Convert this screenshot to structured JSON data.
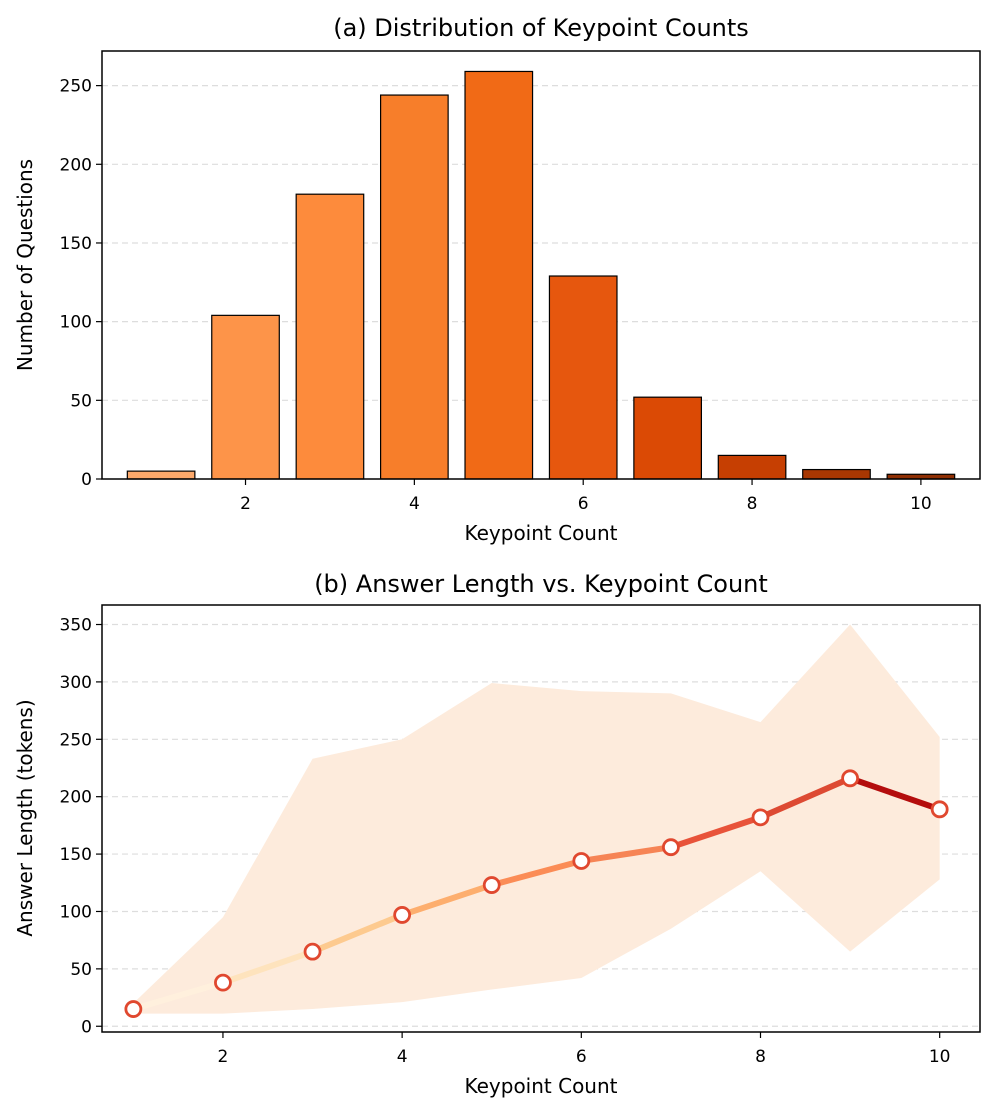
{
  "chart_data": [
    {
      "type": "bar",
      "title": "(a) Distribution of Keypoint Counts",
      "xlabel": "Keypoint Count",
      "ylabel": "Number of Questions",
      "categories": [
        1,
        2,
        3,
        4,
        5,
        6,
        7,
        8,
        9,
        10
      ],
      "values": [
        5,
        104,
        181,
        244,
        259,
        129,
        52,
        15,
        6,
        3
      ],
      "colors": [
        "#fda96b",
        "#fd9449",
        "#fd8b3c",
        "#f77e2a",
        "#f16a16",
        "#e6570e",
        "#db4a05",
        "#c63f02",
        "#a83702",
        "#8f2f04"
      ],
      "xticks": [
        2,
        4,
        6,
        8,
        10
      ],
      "yticks": [
        0,
        50,
        100,
        150,
        200,
        250
      ],
      "xlim": [
        0.3,
        10.7
      ],
      "ylim": [
        0,
        272
      ],
      "grid": "y-dashed"
    },
    {
      "type": "line",
      "title": "(b) Answer Length vs. Keypoint Count",
      "xlabel": "Keypoint Count",
      "ylabel": "Answer Length (tokens)",
      "x": [
        1,
        2,
        3,
        4,
        5,
        6,
        7,
        8,
        9,
        10
      ],
      "mean": [
        15,
        38,
        65,
        97,
        123,
        144,
        156,
        182,
        216,
        189
      ],
      "band_upper": [
        20,
        95,
        233,
        250,
        299,
        292,
        290,
        265,
        350,
        252
      ],
      "band_lower": [
        11,
        11,
        15,
        21,
        32,
        42,
        85,
        135,
        65,
        128
      ],
      "segment_colors": [
        "#fff0dd",
        "#fee3bd",
        "#fdca8f",
        "#fdae6e",
        "#fb8c56",
        "#f68455",
        "#e8533a",
        "#dd4a33",
        "#b40d0d"
      ],
      "band_color": "#fdebdc",
      "marker_edge_color": "#e0482f",
      "xticks": [
        2,
        4,
        6,
        8,
        10
      ],
      "yticks": [
        0,
        50,
        100,
        150,
        200,
        250,
        300,
        350
      ],
      "xlim": [
        0.65,
        10.45
      ],
      "ylim": [
        -5,
        367
      ],
      "grid": "y-dashed"
    }
  ]
}
